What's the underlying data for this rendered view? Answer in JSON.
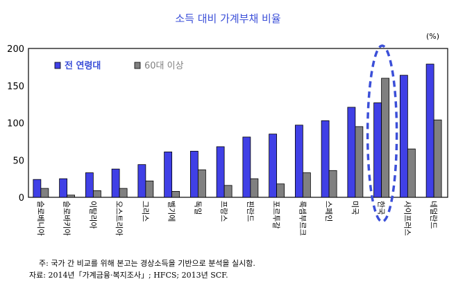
{
  "chart_data": {
    "type": "bar",
    "title": "소득 대비 가계부채 비율",
    "unit_label": "(%)",
    "xlabel": "",
    "ylabel": "",
    "ylim": [
      0,
      200
    ],
    "yticks": [
      0,
      50,
      100,
      150,
      200
    ],
    "grid": false,
    "legend_position": "top-left",
    "categories": [
      "슬로베니아",
      "슬로바키아",
      "이탈리아",
      "오스트리아",
      "그리스",
      "벨기에",
      "독일",
      "프랑스",
      "핀란드",
      "포르투갈",
      "룩셈부르크",
      "스페인",
      "미국",
      "한국",
      "사이프러스",
      "네덜란드"
    ],
    "series": [
      {
        "name": "전 연령대",
        "color": "#4040e6",
        "values": [
          24,
          25,
          33,
          38,
          44,
          61,
          62,
          68,
          81,
          85,
          97,
          103,
          121,
          127,
          164,
          179
        ]
      },
      {
        "name": "60대 이상",
        "color": "#808080",
        "values": [
          12,
          3,
          9,
          12,
          22,
          8,
          37,
          16,
          25,
          18,
          33,
          36,
          95,
          160,
          65,
          104
        ]
      }
    ],
    "highlight": {
      "category": "한국",
      "style": "dashed ellipse",
      "color": "#3b4fd8"
    }
  },
  "notes": {
    "note": "주: 국가 간 비교를 위해 본고는 경상소득을 기반으로 분석을 실시함.",
    "source": "자료: 2014년「가계금융·복지조사」; HFCS; 2013년 SCF."
  }
}
